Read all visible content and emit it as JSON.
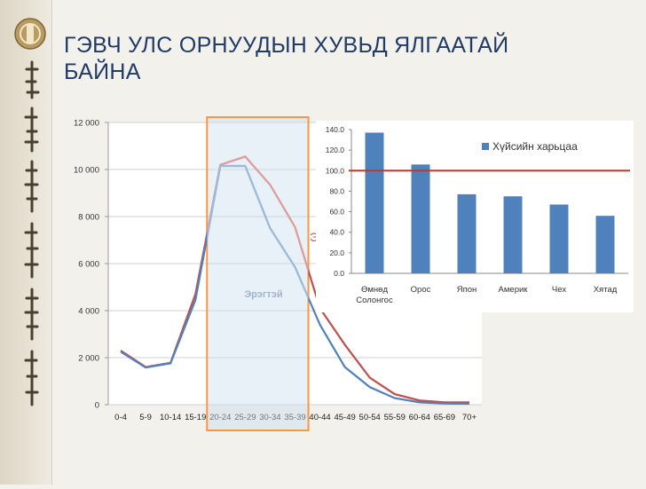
{
  "slide": {
    "title_line1": "ГЭВЧ УЛС ОРНУУДЫН ХУВЬД ЯЛГААТАЙ",
    "title_line2": "БАЙНА"
  },
  "colors": {
    "title": "#1f3b66",
    "bar": "#4f81bd",
    "female_line": "#c0504d",
    "male_line": "#4f81bd",
    "reference_line": "#c0392b",
    "highlight_box": "#f79646"
  },
  "icons": {
    "emblem": "mongolia-state-emblem-icon",
    "script": "mongolian-script-decoration"
  },
  "chart_data": [
    {
      "type": "line",
      "categories": [
        "0-4",
        "5-9",
        "10-14",
        "15-19",
        "20-24",
        "25-29",
        "30-34",
        "35-39",
        "40-44",
        "45-49",
        "50-54",
        "55-59",
        "60-64",
        "65-69",
        "70+"
      ],
      "series": [
        {
          "name": "",
          "values": [
            2300,
            1600,
            1780,
            4700,
            10200,
            10550,
            9350,
            7550,
            4100,
            2550,
            1150,
            450,
            180,
            100,
            100
          ]
        },
        {
          "name": "Эрэгтэй",
          "values": [
            2250,
            1580,
            1760,
            4450,
            10150,
            10150,
            7500,
            5850,
            3400,
            1600,
            750,
            280,
            100,
            50,
            40
          ]
        }
      ],
      "annotations": [
        "Эрэгтэй",
        "Э"
      ],
      "yticks": [
        "12 000",
        "10 000",
        "8 000",
        "6 000",
        "4 000",
        "2 000",
        "0"
      ],
      "ylim": [
        0,
        12000
      ],
      "grid": true,
      "highlight_categories": [
        "20-24",
        "25-29",
        "30-34",
        "35-39"
      ]
    },
    {
      "type": "bar",
      "categories": [
        "Өмнөд Солонгос",
        "Орос",
        "Япон",
        "Америк",
        "Чех",
        "Хятад"
      ],
      "values": [
        137,
        106,
        77,
        75,
        67,
        56
      ],
      "legend": [
        "Хүйсийн харьцаа"
      ],
      "legend_position": "top-right",
      "yticks": [
        "140.0",
        "120.0",
        "100.0",
        "80.0",
        "60.0",
        "40.0",
        "20.0",
        "0.0"
      ],
      "ylim": [
        0,
        140
      ],
      "reference_line": 100
    }
  ]
}
